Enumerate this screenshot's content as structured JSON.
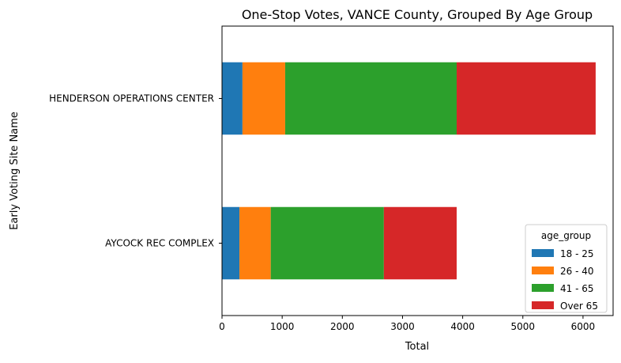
{
  "chart_data": {
    "type": "bar",
    "orientation": "horizontal",
    "stacked": true,
    "title": "One-Stop Votes, VANCE County, Grouped By Age Group",
    "xlabel": "Total",
    "ylabel": "Early Voting Site Name",
    "categories": [
      "AYCOCK REC COMPLEX",
      "HENDERSON OPERATIONS CENTER"
    ],
    "series": [
      {
        "name": "18 - 25",
        "color": "#1f77b4",
        "values": [
          290,
          340
        ]
      },
      {
        "name": "26 - 40",
        "color": "#ff7f0e",
        "values": [
          520,
          710
        ]
      },
      {
        "name": "41 - 65",
        "color": "#2ca02c",
        "values": [
          1880,
          2850
        ]
      },
      {
        "name": "Over 65",
        "color": "#d62728",
        "values": [
          1210,
          2310
        ]
      }
    ],
    "xlim": [
      0,
      6500
    ],
    "xticks": [
      0,
      1000,
      2000,
      3000,
      4000,
      5000,
      6000
    ],
    "grid": false,
    "legend": {
      "title": "age_group",
      "placement": "lower-right"
    }
  }
}
